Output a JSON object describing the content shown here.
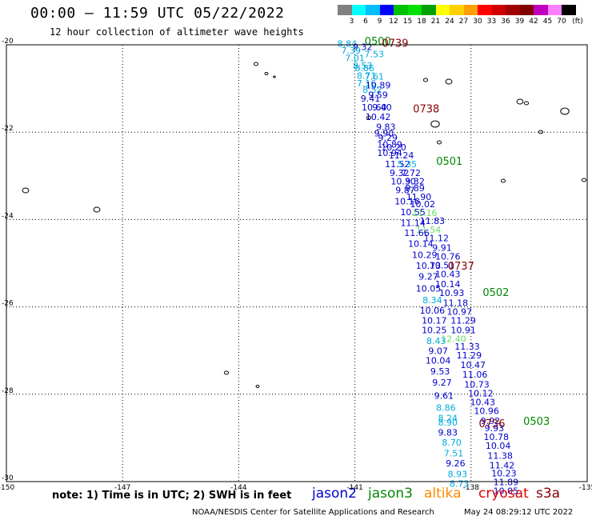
{
  "title": "00:00 – 11:59 UTC 05/22/2022",
  "subtitle": "12 hour collection of altimeter wave heights",
  "colorbar": {
    "labels": [
      "3",
      "6",
      "9",
      "12",
      "15",
      "18",
      "21",
      "24",
      "27",
      "30",
      "33",
      "36",
      "39",
      "42",
      "45",
      "70"
    ],
    "unit": "(ft)",
    "colors": [
      "#808080",
      "#00ffff",
      "#00bfff",
      "#0000ff",
      "#00c000",
      "#00e000",
      "#00a000",
      "#ffff00",
      "#ffd000",
      "#ffa000",
      "#ff0000",
      "#d00000",
      "#a00000",
      "#800000",
      "#c000c0",
      "#ff80ff",
      "#000000"
    ]
  },
  "note": "note:  1) Time is in UTC; 2) SWH is in feet",
  "legend": [
    {
      "name": "jason2",
      "color": "#0000cc"
    },
    {
      "name": "jason3",
      "color": "#008800"
    },
    {
      "name": "altika",
      "color": "#ff8800"
    },
    {
      "name": "cryosat",
      "color": "#dd0000"
    },
    {
      "name": "s3a",
      "color": "#880000"
    }
  ],
  "credit": "NOAA/NESDIS Center for Satellite Applications and Research",
  "timestamp": "May 24 08:29:12 UTC 2022",
  "chart_data": {
    "type": "scatter",
    "title": "12 hour collection of altimeter wave heights",
    "xlim": [
      -150,
      -135
    ],
    "ylim": [
      -30,
      -20
    ],
    "x_ticks": [
      "-150",
      "-147",
      "-144",
      "-141",
      "-138",
      "-135"
    ],
    "y_ticks": [
      "-20",
      "-22",
      "-24",
      "-26",
      "-28",
      "-30"
    ],
    "grid": true,
    "series": [
      {
        "name": "track-a",
        "color_by_value": true,
        "points": [
          {
            "lon": -141.2,
            "lat": -20.05,
            "v": "8.84",
            "c": "#00aadd"
          },
          {
            "lon": -140.8,
            "lat": -20.12,
            "v": "9.32",
            "c": "#0000cc"
          },
          {
            "lon": -141.1,
            "lat": -20.2,
            "v": "7.39",
            "c": "#00aadd"
          },
          {
            "lon": -140.5,
            "lat": -20.28,
            "v": "7.53",
            "c": "#00aadd"
          },
          {
            "lon": -141.0,
            "lat": -20.38,
            "v": "7.01",
            "c": "#00aadd"
          },
          {
            "lon": -140.8,
            "lat": -20.55,
            "v": "8.53",
            "c": "#00aadd"
          },
          {
            "lon": -140.75,
            "lat": -20.6,
            "v": "8.86",
            "c": "#00aadd"
          },
          {
            "lon": -140.7,
            "lat": -20.78,
            "v": "8.71",
            "c": "#00aadd"
          },
          {
            "lon": -140.5,
            "lat": -20.8,
            "v": "7.61",
            "c": "#00aadd"
          },
          {
            "lon": -140.7,
            "lat": -20.95,
            "v": "7.16",
            "c": "#00aadd"
          },
          {
            "lon": -140.4,
            "lat": -21.0,
            "v": "10.89",
            "c": "#0000cc"
          },
          {
            "lon": -140.55,
            "lat": -21.1,
            "v": "8.52",
            "c": "#00aadd"
          },
          {
            "lon": -140.4,
            "lat": -21.22,
            "v": "9.59",
            "c": "#0000cc"
          },
          {
            "lon": -140.6,
            "lat": -21.3,
            "v": "9.41",
            "c": "#0000cc"
          },
          {
            "lon": -140.5,
            "lat": -21.5,
            "v": "10.60",
            "c": "#0000cc"
          },
          {
            "lon": -140.3,
            "lat": -21.5,
            "v": "9.40",
            "c": "#0000cc"
          },
          {
            "lon": -140.4,
            "lat": -21.72,
            "v": "10.42",
            "c": "#0000cc"
          },
          {
            "lon": -140.2,
            "lat": -21.95,
            "v": "9.83",
            "c": "#0000cc"
          },
          {
            "lon": -140.25,
            "lat": -22.1,
            "v": "9.90",
            "c": "#0000cc"
          },
          {
            "lon": -140.15,
            "lat": -22.2,
            "v": "9.29",
            "c": "#0000cc"
          },
          {
            "lon": -140.1,
            "lat": -22.35,
            "v": "10.89",
            "c": "#0000cc"
          },
          {
            "lon": -140.0,
            "lat": -22.42,
            "v": "10.20",
            "c": "#0000cc"
          },
          {
            "lon": -140.1,
            "lat": -22.55,
            "v": "10.94",
            "c": "#0000cc"
          },
          {
            "lon": -139.8,
            "lat": -22.6,
            "v": "11.24",
            "c": "#0000cc"
          },
          {
            "lon": -139.9,
            "lat": -22.8,
            "v": "11.52",
            "c": "#0000cc"
          },
          {
            "lon": -139.65,
            "lat": -22.8,
            "v": "5.35",
            "c": "#00aadd"
          },
          {
            "lon": -139.85,
            "lat": -23.0,
            "v": "9.32",
            "c": "#0000cc"
          },
          {
            "lon": -139.55,
            "lat": -23.0,
            "v": "7.72",
            "c": "#0000cc"
          },
          {
            "lon": -139.75,
            "lat": -23.2,
            "v": "10.30",
            "c": "#0000cc"
          },
          {
            "lon": -139.45,
            "lat": -23.2,
            "v": "9.32",
            "c": "#0000cc"
          },
          {
            "lon": -139.7,
            "lat": -23.4,
            "v": "9.87",
            "c": "#0000cc"
          },
          {
            "lon": -139.45,
            "lat": -23.35,
            "v": "9.89",
            "c": "#0000cc"
          },
          {
            "lon": -139.35,
            "lat": -23.55,
            "v": "11.90",
            "c": "#0000cc"
          },
          {
            "lon": -139.65,
            "lat": -23.65,
            "v": "10.16",
            "c": "#0000cc"
          },
          {
            "lon": -139.25,
            "lat": -23.72,
            "v": "10.02",
            "c": "#0000cc"
          },
          {
            "lon": -139.5,
            "lat": -23.9,
            "v": "10.55",
            "c": "#0000cc"
          },
          {
            "lon": -139.2,
            "lat": -23.92,
            "v": "11.16",
            "c": "#66dd66"
          },
          {
            "lon": -139.5,
            "lat": -24.15,
            "v": "11.14",
            "c": "#0000cc"
          },
          {
            "lon": -139.0,
            "lat": -24.1,
            "v": "11.83",
            "c": "#0000cc"
          },
          {
            "lon": -139.1,
            "lat": -24.3,
            "v": "11.54",
            "c": "#66dd66"
          },
          {
            "lon": -139.4,
            "lat": -24.38,
            "v": "11.66",
            "c": "#0000cc"
          },
          {
            "lon": -138.9,
            "lat": -24.5,
            "v": "11.12",
            "c": "#0000cc"
          },
          {
            "lon": -139.3,
            "lat": -24.62,
            "v": "10.14",
            "c": "#0000cc"
          },
          {
            "lon": -138.75,
            "lat": -24.72,
            "v": "9.91",
            "c": "#0000cc"
          },
          {
            "lon": -139.2,
            "lat": -24.88,
            "v": "10.29",
            "c": "#0000cc"
          },
          {
            "lon": -138.6,
            "lat": -24.92,
            "v": "10.76",
            "c": "#0000cc"
          },
          {
            "lon": -139.1,
            "lat": -25.13,
            "v": "10.73",
            "c": "#0000cc"
          },
          {
            "lon": -138.75,
            "lat": -25.12,
            "v": "10.51",
            "c": "#0000cc"
          },
          {
            "lon": -138.6,
            "lat": -25.32,
            "v": "10.43",
            "c": "#0000cc"
          },
          {
            "lon": -139.1,
            "lat": -25.38,
            "v": "9.27",
            "c": "#0000cc"
          },
          {
            "lon": -138.6,
            "lat": -25.55,
            "v": "10.14",
            "c": "#0000cc"
          },
          {
            "lon": -139.1,
            "lat": -25.65,
            "v": "10.05",
            "c": "#0000cc"
          },
          {
            "lon": -138.5,
            "lat": -25.75,
            "v": "10.93",
            "c": "#0000cc"
          },
          {
            "lon": -139.0,
            "lat": -25.92,
            "v": "8.34",
            "c": "#00aadd"
          },
          {
            "lon": -138.4,
            "lat": -25.98,
            "v": "11.18",
            "c": "#0000cc"
          },
          {
            "lon": -139.0,
            "lat": -26.15,
            "v": "10.06",
            "c": "#0000cc"
          },
          {
            "lon": -138.3,
            "lat": -26.18,
            "v": "10.97",
            "c": "#0000cc"
          },
          {
            "lon": -138.95,
            "lat": -26.38,
            "v": "10.17",
            "c": "#0000cc"
          },
          {
            "lon": -138.2,
            "lat": -26.38,
            "v": "11.29",
            "c": "#0000cc"
          },
          {
            "lon": -138.2,
            "lat": -26.6,
            "v": "10.91",
            "c": "#0000cc"
          },
          {
            "lon": -138.95,
            "lat": -26.6,
            "v": "10.25",
            "c": "#0000cc"
          },
          {
            "lon": -138.45,
            "lat": -26.8,
            "v": "12.40",
            "c": "#66dd66"
          },
          {
            "lon": -138.9,
            "lat": -26.85,
            "v": "8.43",
            "c": "#00aadd"
          },
          {
            "lon": -138.1,
            "lat": -26.98,
            "v": "11.33",
            "c": "#0000cc"
          },
          {
            "lon": -138.85,
            "lat": -27.08,
            "v": "9.07",
            "c": "#0000cc"
          },
          {
            "lon": -138.05,
            "lat": -27.18,
            "v": "11.29",
            "c": "#0000cc"
          },
          {
            "lon": -138.85,
            "lat": -27.3,
            "v": "10.04",
            "c": "#0000cc"
          },
          {
            "lon": -137.95,
            "lat": -27.4,
            "v": "10.47",
            "c": "#0000cc"
          },
          {
            "lon": -138.8,
            "lat": -27.55,
            "v": "9.53",
            "c": "#0000cc"
          },
          {
            "lon": -137.9,
            "lat": -27.62,
            "v": "11.06",
            "c": "#0000cc"
          },
          {
            "lon": -138.75,
            "lat": -27.8,
            "v": "9.27",
            "c": "#0000cc"
          },
          {
            "lon": -137.85,
            "lat": -27.85,
            "v": "10.73",
            "c": "#0000cc"
          },
          {
            "lon": -137.75,
            "lat": -28.05,
            "v": "10.12",
            "c": "#0000cc"
          },
          {
            "lon": -138.7,
            "lat": -28.1,
            "v": "9.61",
            "c": "#0000cc"
          },
          {
            "lon": -137.7,
            "lat": -28.25,
            "v": "10.43",
            "c": "#0000cc"
          },
          {
            "lon": -138.65,
            "lat": -28.38,
            "v": "8.86",
            "c": "#00aadd"
          },
          {
            "lon": -137.6,
            "lat": -28.45,
            "v": "10.96",
            "c": "#0000cc"
          },
          {
            "lon": -138.6,
            "lat": -28.62,
            "v": "8.24",
            "c": "#00aadd"
          },
          {
            "lon": -137.5,
            "lat": -28.68,
            "v": "9.92",
            "c": "#0000cc"
          },
          {
            "lon": -138.6,
            "lat": -28.72,
            "v": "8.90",
            "c": "#00aadd"
          },
          {
            "lon": -137.4,
            "lat": -28.85,
            "v": "9.93",
            "c": "#0000cc"
          },
          {
            "lon": -138.6,
            "lat": -28.95,
            "v": "9.83",
            "c": "#0000cc"
          },
          {
            "lon": -137.35,
            "lat": -29.05,
            "v": "10.78",
            "c": "#0000cc"
          },
          {
            "lon": -138.5,
            "lat": -29.18,
            "v": "8.70",
            "c": "#00aadd"
          },
          {
            "lon": -137.3,
            "lat": -29.25,
            "v": "10.04",
            "c": "#0000cc"
          },
          {
            "lon": -138.45,
            "lat": -29.42,
            "v": "7.51",
            "c": "#00aadd"
          },
          {
            "lon": -137.25,
            "lat": -29.48,
            "v": "11.38",
            "c": "#0000cc"
          },
          {
            "lon": -138.4,
            "lat": -29.65,
            "v": "9.26",
            "c": "#0000cc"
          },
          {
            "lon": -137.2,
            "lat": -29.7,
            "v": "11.42",
            "c": "#0000cc"
          },
          {
            "lon": -137.15,
            "lat": -29.88,
            "v": "10.23",
            "c": "#0000cc"
          },
          {
            "lon": -138.35,
            "lat": -29.9,
            "v": "8.93",
            "c": "#00aadd"
          },
          {
            "lon": -137.1,
            "lat": -30.08,
            "v": "11.89",
            "c": "#0000cc"
          },
          {
            "lon": -138.3,
            "lat": -30.12,
            "v": "8.73",
            "c": "#00aadd"
          },
          {
            "lon": -137.1,
            "lat": -30.28,
            "v": "10.05",
            "c": "#0000cc"
          }
        ]
      }
    ],
    "time_labels": [
      {
        "lon": -140.75,
        "lat": -20.0,
        "text": "0500",
        "color": "#008800"
      },
      {
        "lon": -140.3,
        "lat": -20.05,
        "text": "0739",
        "color": "#880000"
      },
      {
        "lon": -139.5,
        "lat": -21.55,
        "text": "0738",
        "color": "#880000"
      },
      {
        "lon": -138.9,
        "lat": -22.75,
        "text": "0501",
        "color": "#008800"
      },
      {
        "lon": -138.6,
        "lat": -25.15,
        "text": "0737",
        "color": "#880000"
      },
      {
        "lon": -137.7,
        "lat": -25.75,
        "text": "0502",
        "color": "#008800"
      },
      {
        "lon": -137.8,
        "lat": -28.75,
        "text": "0736",
        "color": "#880000"
      },
      {
        "lon": -136.65,
        "lat": -28.7,
        "text": "0503",
        "color": "#008800"
      }
    ]
  }
}
